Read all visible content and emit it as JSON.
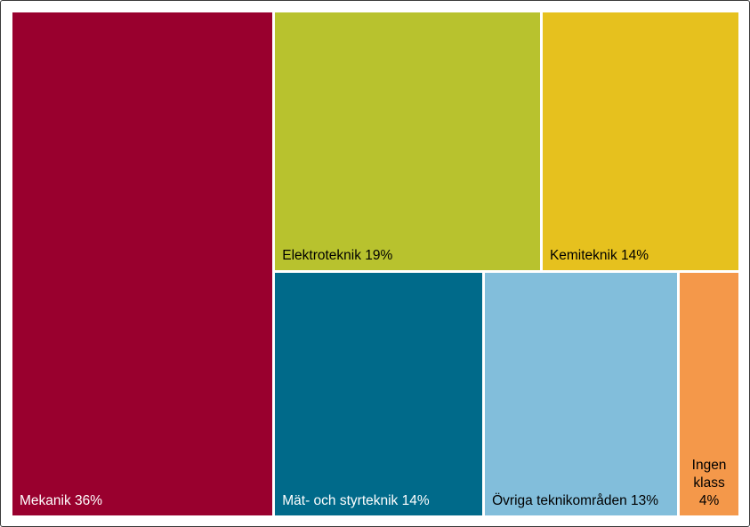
{
  "chart_data": {
    "type": "treemap",
    "items": [
      {
        "name": "Mekanik",
        "value": 36,
        "label": "Mekanik 36%",
        "color": "#99002e",
        "text_color": "#ffffff"
      },
      {
        "name": "Elektroteknik",
        "value": 19,
        "label": "Elektroteknik 19%",
        "color": "#b8c22e",
        "text_color": "#000000"
      },
      {
        "name": "Kemiteknik",
        "value": 14,
        "label": "Kemiteknik 14%",
        "color": "#e6c11e",
        "text_color": "#000000"
      },
      {
        "name": "Mät- och styrteknik",
        "value": 14,
        "label": "Mät- och styrteknik 14%",
        "color": "#006a8a",
        "text_color": "#ffffff"
      },
      {
        "name": "Övriga teknikområden",
        "value": 13,
        "label": "Övriga teknikområden 13%",
        "color": "#82bedb",
        "text_color": "#000000"
      },
      {
        "name": "Ingen klass",
        "value": 4,
        "label": "Ingen klass 4%",
        "color": "#f4984a",
        "text_color": "#000000"
      }
    ]
  }
}
